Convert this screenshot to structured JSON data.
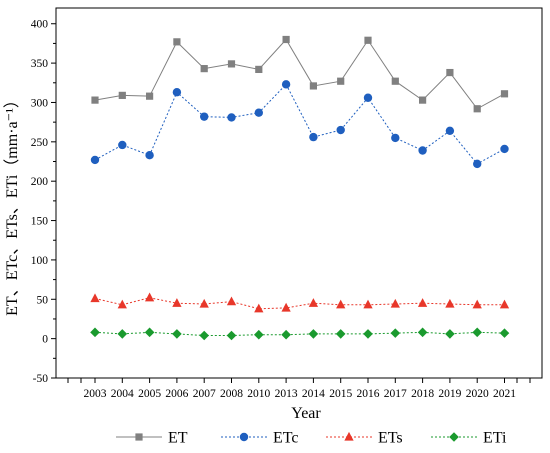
{
  "chart_data": {
    "type": "line",
    "xlabel": "Year",
    "ylabel": "ET、ETc、ETs、ETi（mm·a⁻¹）",
    "categories": [
      "2003",
      "2004",
      "2005",
      "2006",
      "2007",
      "2008",
      "2010",
      "2013",
      "2014",
      "2015",
      "2016",
      "2017",
      "2018",
      "2019",
      "2020",
      "2021"
    ],
    "ylim": [
      -50,
      420
    ],
    "yticks": [
      -50,
      0,
      50,
      100,
      150,
      200,
      250,
      300,
      350,
      400
    ],
    "grid": false,
    "legend_position": "bottom",
    "series": [
      {
        "name": "ET",
        "color": "#808080",
        "line": "solid",
        "marker": "square",
        "values": [
          303,
          309,
          308,
          377,
          343,
          349,
          342,
          380,
          321,
          327,
          379,
          327,
          303,
          338,
          292,
          311
        ]
      },
      {
        "name": "ETc",
        "color": "#1f5fbf",
        "line": "dotted",
        "marker": "circle",
        "values": [
          227,
          246,
          233,
          313,
          282,
          281,
          287,
          323,
          256,
          265,
          306,
          255,
          239,
          264,
          222,
          241
        ]
      },
      {
        "name": "ETs",
        "color": "#e8372a",
        "line": "dotted",
        "marker": "triangle",
        "values": [
          51,
          43,
          52,
          45,
          44,
          47,
          38,
          39,
          45,
          43,
          43,
          44,
          45,
          44,
          43,
          43
        ]
      },
      {
        "name": "ETi",
        "color": "#1a9a2e",
        "line": "dotted",
        "marker": "diamond",
        "values": [
          8,
          6,
          8,
          6,
          4,
          4,
          5,
          5,
          6,
          6,
          6,
          7,
          8,
          6,
          8,
          7
        ]
      }
    ]
  }
}
